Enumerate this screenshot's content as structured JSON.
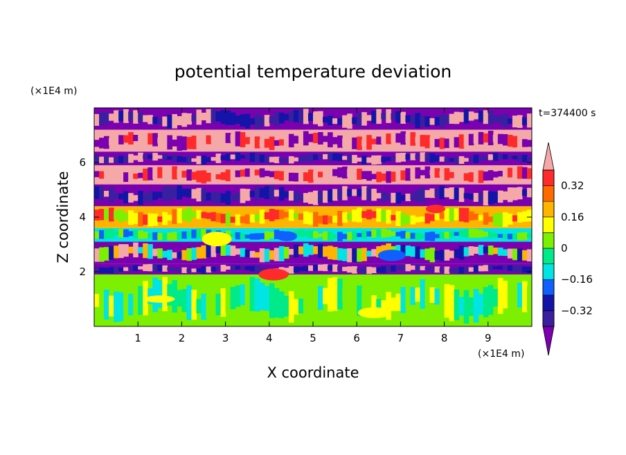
{
  "chart_data": {
    "type": "heatmap",
    "title": "potential temperature deviation",
    "xlabel": "X coordinate",
    "ylabel": "Z coordinate",
    "x_unit": "(×1E4 m)",
    "y_unit": "(×1E4 m)",
    "time_label": "t=374400 s",
    "xlim": [
      0,
      10
    ],
    "ylim": [
      0,
      8
    ],
    "x_ticks": [
      1,
      2,
      3,
      4,
      5,
      6,
      7,
      8,
      9
    ],
    "y_ticks": [
      2,
      4,
      6
    ],
    "grid": false,
    "colorbar": {
      "placement": "right",
      "levels": [
        -0.48,
        -0.4,
        -0.32,
        -0.24,
        -0.16,
        -0.08,
        0,
        0.08,
        0.16,
        0.24,
        0.32,
        0.4
      ],
      "colors": [
        "#7b00b0",
        "#3a1fa0",
        "#1414a8",
        "#1060ff",
        "#00e4e4",
        "#00ea8a",
        "#7cf000",
        "#ffff00",
        "#ffb400",
        "#ff6a00",
        "#ff2a2a",
        "#f5a8a8"
      ],
      "tick_labels": [
        "0.32",
        "0.16",
        "0",
        "−0.16",
        "−0.32"
      ],
      "tick_values": [
        0.32,
        0.16,
        0,
        -0.16,
        -0.32
      ]
    },
    "field_bands": [
      {
        "z": [
          0.0,
          1.9
        ],
        "class": "lime"
      },
      {
        "z": [
          1.9,
          2.3
        ],
        "class": "purple"
      },
      {
        "z": [
          2.3,
          3.1
        ],
        "class": "mixed"
      },
      {
        "z": [
          3.1,
          3.6
        ],
        "class": "cyan"
      },
      {
        "z": [
          3.6,
          4.4
        ],
        "class": "orange"
      },
      {
        "z": [
          4.4,
          5.2
        ],
        "class": "purple"
      },
      {
        "z": [
          5.2,
          5.9
        ],
        "class": "pink"
      },
      {
        "z": [
          5.9,
          6.4
        ],
        "class": "purple"
      },
      {
        "z": [
          6.4,
          7.2
        ],
        "class": "pink"
      },
      {
        "z": [
          7.2,
          8.0
        ],
        "class": "purple"
      }
    ]
  }
}
